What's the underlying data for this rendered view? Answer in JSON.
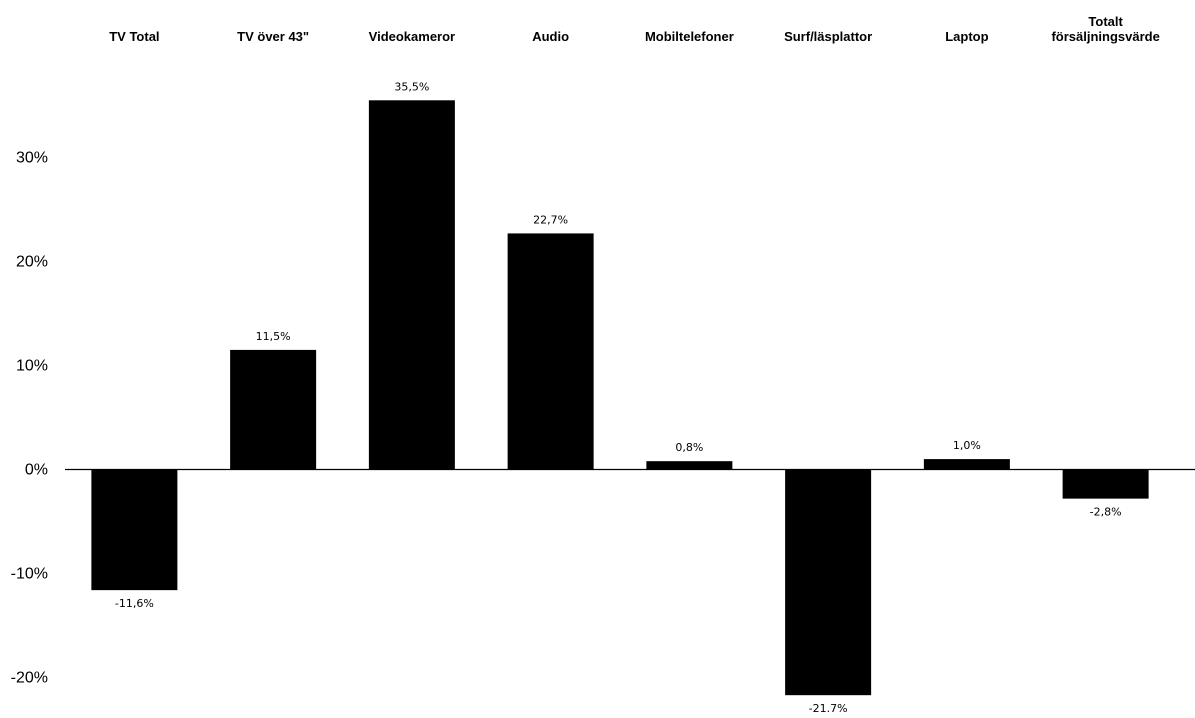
{
  "chart_data": {
    "type": "bar",
    "categories": [
      [
        "TV Total"
      ],
      [
        "TV över 43\""
      ],
      [
        "Videokameror"
      ],
      [
        "Audio"
      ],
      [
        "Mobiltelefoner"
      ],
      [
        "Surf/läsplattor"
      ],
      [
        "Laptop"
      ],
      [
        "Totalt",
        "försäljningsvärde"
      ]
    ],
    "values": [
      -11.6,
      11.5,
      35.5,
      22.7,
      0.8,
      -21.7,
      1.0,
      -2.8
    ],
    "value_labels": [
      "-11,6%",
      "11,5%",
      "35,5%",
      "22,7%",
      "0,8%",
      "-21.7%",
      "1,0%",
      "-2,8%"
    ],
    "yticks": [
      30,
      20,
      10,
      0,
      -10,
      -20
    ],
    "ytick_labels": [
      "30%",
      "20%",
      "10%",
      "0%",
      "-10%",
      "-20%"
    ],
    "ylim": [
      -23,
      37
    ],
    "grid": false,
    "bar_color": "#000000",
    "title": "",
    "xlabel": "",
    "ylabel": ""
  }
}
